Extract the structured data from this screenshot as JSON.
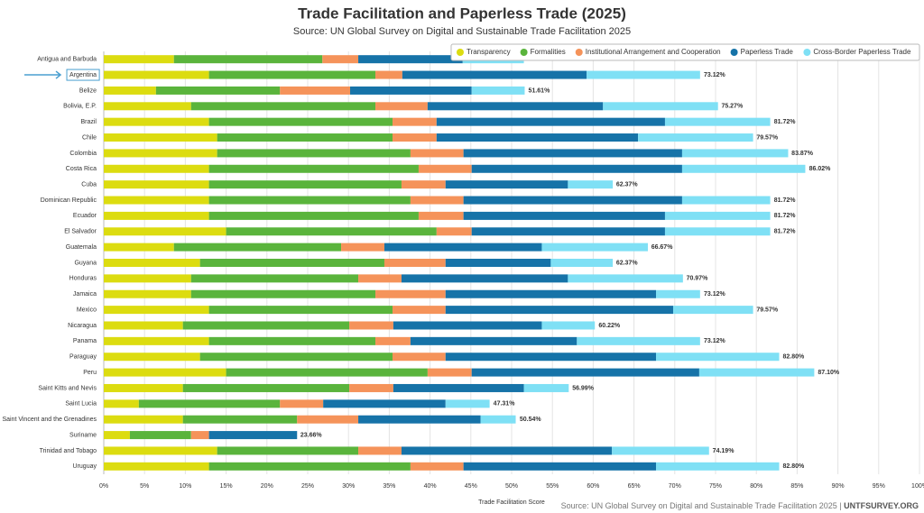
{
  "chart_data": {
    "type": "stacked-barh",
    "title": "Trade Facilitation and Paperless Trade (2025)",
    "subtitle": "Source: UN Global Survey on Digital and Sustainable Trade Facilitation 2025",
    "x_label": "Trade Facilitation Score",
    "footer": [
      "Source: UN Global Survey on Digital and Sustainable Trade Facilitation 2025",
      "|",
      "UNTFSURVEY.ORG"
    ],
    "legend": "top-right",
    "grid": true,
    "highlight_index": 1,
    "xlim": [
      0,
      100
    ],
    "xticks": [
      {
        "value": 0,
        "label": "0%"
      },
      {
        "value": 5,
        "label": "5%"
      },
      {
        "value": 10,
        "label": "10%"
      },
      {
        "value": 15,
        "label": "15%"
      },
      {
        "value": 20,
        "label": "20%"
      },
      {
        "value": 25,
        "label": "25%"
      },
      {
        "value": 30,
        "label": "30%"
      },
      {
        "value": 35,
        "label": "35%"
      },
      {
        "value": 40,
        "label": "40%"
      },
      {
        "value": 45,
        "label": "45%"
      },
      {
        "value": 50,
        "label": "50%"
      },
      {
        "value": 55,
        "label": "55%"
      },
      {
        "value": 60,
        "label": "60%"
      },
      {
        "value": 65,
        "label": "65%"
      },
      {
        "value": 70,
        "label": "70%"
      },
      {
        "value": 75,
        "label": "75%"
      },
      {
        "value": 80,
        "label": "80%"
      },
      {
        "value": 85,
        "label": "85%"
      },
      {
        "value": 90,
        "label": "90%"
      },
      {
        "value": 95,
        "label": "95%"
      },
      {
        "value": 100,
        "label": "100%"
      }
    ],
    "categories": [
      "Antigua and Barbuda",
      "Argentina",
      "Belize",
      "Bolivia, E.P.",
      "Brazil",
      "Chile",
      "Colombia",
      "Costa Rica",
      "Cuba",
      "Dominican Republic",
      "Ecuador",
      "El Salvador",
      "Guatemala",
      "Guyana",
      "Honduras",
      "Jamaica",
      "Mexico",
      "Nicaragua",
      "Panama",
      "Paraguay",
      "Peru",
      "Saint Kitts and Nevis",
      "Saint Lucia",
      "Saint Vincent and the Grenadines",
      "Suriname",
      "Trinidad and Tobago",
      "Uruguay"
    ],
    "series": [
      {
        "name": "Transparency",
        "color": "#dcdc10",
        "values": [
          8.6,
          12.9,
          6.4,
          10.7,
          12.9,
          13.9,
          13.9,
          12.9,
          12.9,
          12.9,
          12.9,
          15.0,
          8.6,
          11.8,
          10.7,
          10.7,
          12.9,
          9.7,
          12.9,
          11.8,
          15.0,
          9.7,
          4.3,
          9.7,
          3.2,
          13.9,
          12.9
        ]
      },
      {
        "name": "Formalities",
        "color": "#5ab43c",
        "values": [
          18.2,
          20.4,
          15.2,
          22.6,
          22.5,
          21.5,
          23.7,
          25.7,
          23.6,
          24.7,
          25.7,
          25.8,
          20.5,
          22.6,
          20.5,
          22.6,
          22.5,
          20.4,
          20.4,
          23.6,
          24.7,
          20.4,
          17.3,
          14.0,
          7.5,
          17.3,
          24.7
        ]
      },
      {
        "name": "Institutional Arrangement and Cooperation",
        "color": "#f5935a",
        "values": [
          4.4,
          3.3,
          8.6,
          6.4,
          5.4,
          5.4,
          6.5,
          6.5,
          5.4,
          6.5,
          5.5,
          4.3,
          5.3,
          7.5,
          5.3,
          8.6,
          6.5,
          5.4,
          4.3,
          6.5,
          5.4,
          5.4,
          5.3,
          7.5,
          2.2,
          5.3,
          6.5
        ]
      },
      {
        "name": "Paperless Trade",
        "color": "#1673a8",
        "values": [
          12.8,
          22.6,
          14.9,
          21.5,
          28.0,
          24.7,
          26.8,
          25.8,
          15.0,
          26.8,
          24.7,
          23.7,
          19.3,
          12.9,
          20.4,
          25.8,
          27.9,
          18.2,
          20.4,
          25.8,
          27.9,
          16.0,
          15.0,
          15.0,
          10.8,
          25.8,
          23.6
        ]
      },
      {
        "name": "Cross-Border Paperless Trade",
        "color": "#7fe0f5",
        "values": [
          7.5,
          13.9,
          6.5,
          14.1,
          12.9,
          14.1,
          13.0,
          15.1,
          5.5,
          10.8,
          12.9,
          12.9,
          13.0,
          7.6,
          14.1,
          5.4,
          9.8,
          6.5,
          15.1,
          15.1,
          14.1,
          5.5,
          5.4,
          4.3,
          0,
          11.9,
          15.1
        ]
      }
    ],
    "totals": [
      null,
      73.12,
      51.61,
      75.27,
      81.72,
      79.57,
      83.87,
      86.02,
      62.37,
      81.72,
      81.72,
      81.72,
      66.67,
      62.37,
      70.97,
      73.12,
      79.57,
      60.22,
      73.12,
      82.8,
      87.1,
      56.99,
      47.31,
      50.54,
      23.66,
      74.19,
      82.8
    ],
    "total_labels": [
      null,
      "73.12%",
      "51.61%",
      "75.27%",
      "81.72%",
      "79.57%",
      "83.87%",
      "86.02%",
      "62.37%",
      "81.72%",
      "81.72%",
      "81.72%",
      "66.67%",
      "62.37%",
      "70.97%",
      "73.12%",
      "79.57%",
      "60.22%",
      "73.12%",
      "82.80%",
      "87.10%",
      "56.99%",
      "47.31%",
      "50.54%",
      "23.66%",
      "74.19%",
      "82.80%"
    ]
  }
}
